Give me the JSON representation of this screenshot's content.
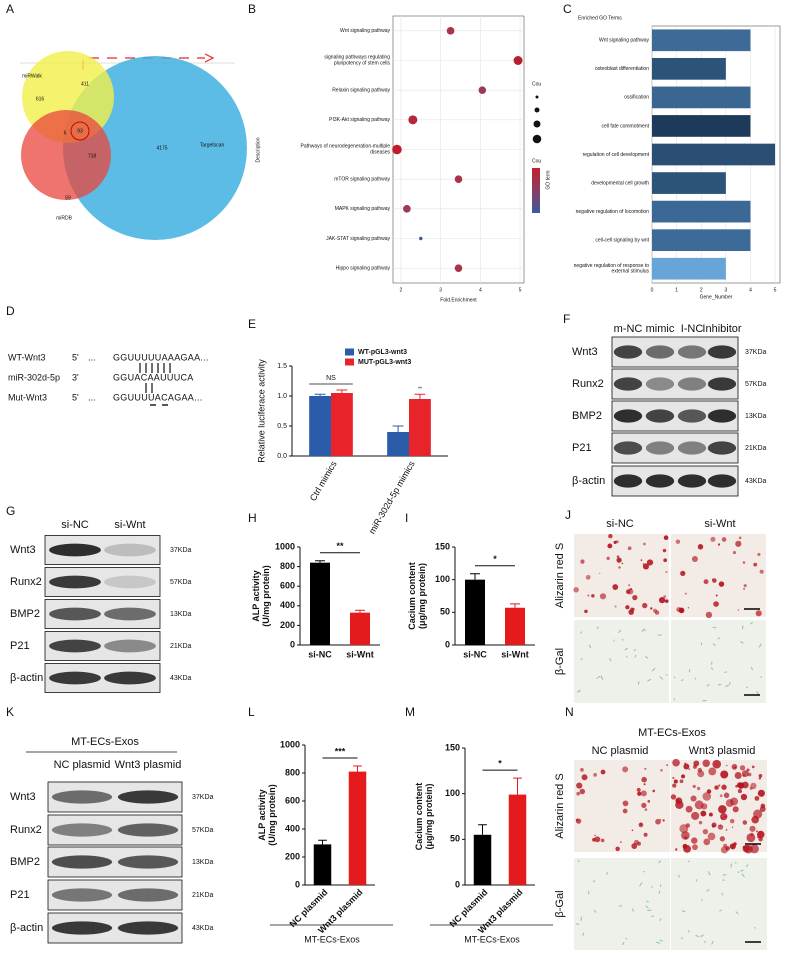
{
  "panel_labels": [
    "A",
    "B",
    "C",
    "D",
    "E",
    "F",
    "G",
    "H",
    "I",
    "J",
    "K",
    "L",
    "M",
    "N"
  ],
  "venn": {
    "sets": [
      "miRWalk",
      "miRDB",
      "Targetscan"
    ],
    "regions": [
      616,
      411,
      6,
      93,
      718,
      59,
      4175
    ]
  },
  "sequences": [
    {
      "name": "WT-Wnt3",
      "end": "5'",
      "gap": "...",
      "seq": "GGUUUUUAAAGAA..."
    },
    {
      "name": "miR-302d-5p",
      "end": "3'",
      "seq": "GGUACAAUUUCA"
    },
    {
      "name": "Mut-Wnt3",
      "end": "5'",
      "gap": "...",
      "seq": "GGUUUUACAGAA..."
    }
  ],
  "blots": [
    {
      "lanes": [
        "m-NC",
        "mimic",
        "I-NC",
        "Inhibitor"
      ],
      "bands": [
        "Wnt3",
        "Runx2",
        "BMP2",
        "P21",
        "β-actin"
      ],
      "sizes": [
        "37KDa",
        "57KDa",
        "13KDa",
        "21KDa",
        "43KDa"
      ]
    },
    {
      "lanes": [
        "si-NC",
        "si-Wnt"
      ],
      "bands": [
        "Wnt3",
        "Runx2",
        "BMP2",
        "P21",
        "β-actin"
      ],
      "sizes": [
        "37KDa",
        "57KDa",
        "13KDa",
        "21KDa",
        "43KDa"
      ]
    },
    {
      "header": "MT-ECs-Exos",
      "lanes": [
        "NC plasmid",
        "Wnt3 plasmid"
      ],
      "bands": [
        "Wnt3",
        "Runx2",
        "BMP2",
        "P21",
        "β-actin"
      ],
      "sizes": [
        "37KDa",
        "57KDa",
        "13KDa",
        "21KDa",
        "43KDa"
      ]
    }
  ],
  "stains": [
    {
      "columns": [
        "si-NC",
        "si-Wnt"
      ],
      "rows": [
        "Alizarin red S",
        "β-Gal"
      ]
    },
    {
      "header": "MT-ECs-Exos",
      "columns": [
        "NC plasmid",
        "Wnt3 plasmid"
      ],
      "rows": [
        "Alizarin red S",
        "β-Gal"
      ]
    }
  ],
  "chart_data": [
    {
      "type": "scatter",
      "categories": [
        "Wnt signaling pathway",
        "signaling pathways regulating\npluripotency of stem cells",
        "Relaxin signaling pathway",
        "PI3K-Akt signaling pathway",
        "Pathways of neurodegeneration-multiple\ndiseases",
        "mTOR signaling pathway",
        "MAPK signaling pathway",
        "JAK-STAT signaling pathway",
        "Hippo signaling pathway"
      ],
      "values": [
        3.25,
        4.95,
        4.05,
        2.3,
        1.9,
        3.45,
        2.15,
        2.5,
        3.45
      ],
      "sizes": [
        5,
        7,
        5,
        7,
        8,
        5,
        5,
        1,
        5
      ],
      "colors": [
        "#a8334a",
        "#b5202f",
        "#9b3a55",
        "#b8263a",
        "#bf1d2c",
        "#a8334a",
        "#9b3a55",
        "#3d5a99",
        "#a8334a"
      ],
      "xlim": [
        1.8,
        5.1
      ],
      "xticks": [
        2,
        3,
        4,
        5
      ],
      "grid": true,
      "xlabel": "Fold.Enrichment",
      "ylabel": "Description",
      "size_legend_title": "Cou",
      "color_legend_title": "Cou",
      "color_legend_label": "GO term"
    },
    {
      "type": "hbar",
      "title": "Enriched GO Terms",
      "categories": [
        "Wnt signaling pathway",
        "osteoblast differentiation",
        "ossification",
        "cell fate commotment",
        "regulation of cell development",
        "developmental cell growth",
        "negative regulation of locomotion",
        "cell-cell signaling by wnt",
        "negative regulation of response to\nexternal stimulus"
      ],
      "values": [
        4,
        3,
        4,
        4,
        5,
        3,
        4,
        4,
        3
      ],
      "colors": [
        "#3d6a96",
        "#2d5478",
        "#3a6692",
        "#1e3a5a",
        "#2b4e74",
        "#2c5378",
        "#3b6894",
        "#3d6b98",
        "#67a5d9"
      ],
      "xlim": [
        0,
        5.2
      ],
      "xticks": [
        0,
        1,
        2,
        3,
        4,
        5
      ],
      "grid": true,
      "xlabel": "Gene_Number"
    },
    {
      "type": "bar",
      "categories": [
        "Ctrl mimics",
        "miR-302d-5p mimics"
      ],
      "series": [
        {
          "name": "WT-pGL3-wnt3",
          "color": "#2a5caa",
          "values": [
            1.0,
            0.4
          ],
          "errors": [
            0.03,
            0.1
          ]
        },
        {
          "name": "MUT-pGL3-wnt3",
          "color": "#e8242a",
          "values": [
            1.05,
            0.95
          ],
          "errors": [
            0.05,
            0.08
          ]
        }
      ],
      "ylim": [
        0,
        1.5
      ],
      "yticks": [
        {
          "value": 0,
          "label": "0.0"
        },
        {
          "value": 0.5,
          "label": "0.5"
        },
        {
          "value": 1,
          "label": "1.0"
        },
        {
          "value": 1.5,
          "label": "1.5"
        }
      ],
      "ylabel": "Relative luciferace activity",
      "annotations": [
        "NS",
        "**"
      ]
    },
    {
      "type": "bar",
      "categories": [
        "si-NC",
        "si-Wnt"
      ],
      "values": [
        840,
        330
      ],
      "errors": [
        20,
        25
      ],
      "colors": [
        "#000000",
        "#e41a1c"
      ],
      "ylim": [
        0,
        1000
      ],
      "yticks": [
        0,
        200,
        400,
        600,
        800,
        1000
      ],
      "ylabel": "ALP activity\n(U/mg protein)",
      "significance": "**"
    },
    {
      "type": "bar",
      "categories": [
        "si-NC",
        "si-Wnt"
      ],
      "values": [
        100,
        57
      ],
      "errors": [
        9,
        6
      ],
      "colors": [
        "#000000",
        "#e41a1c"
      ],
      "ylim": [
        0,
        150
      ],
      "yticks": [
        0,
        50,
        100,
        150
      ],
      "ylabel": "Cacium content\n(μg/mg protein)",
      "significance": "*"
    },
    {
      "type": "bar",
      "categories": [
        "NC plasmid",
        "Wnt3 plasmid"
      ],
      "values": [
        290,
        810
      ],
      "errors": [
        30,
        40
      ],
      "colors": [
        "#000000",
        "#e41a1c"
      ],
      "ylim": [
        0,
        1000
      ],
      "yticks": [
        0,
        200,
        400,
        600,
        800,
        1000
      ],
      "ylabel": "ALP activity\n(U/mg protein)",
      "significance": "***",
      "footer": "MT-ECs-Exos"
    },
    {
      "type": "bar",
      "categories": [
        "NC plasmid",
        "Wnt3 plasmid"
      ],
      "values": [
        55,
        99
      ],
      "errors": [
        11,
        18
      ],
      "colors": [
        "#000000",
        "#e41a1c"
      ],
      "ylim": [
        0,
        150
      ],
      "yticks": [
        0,
        50,
        100,
        150
      ],
      "ylabel": "Cacium content\n(μg/mg protein)",
      "significance": "*",
      "footer": "MT-ECs-Exos"
    }
  ]
}
